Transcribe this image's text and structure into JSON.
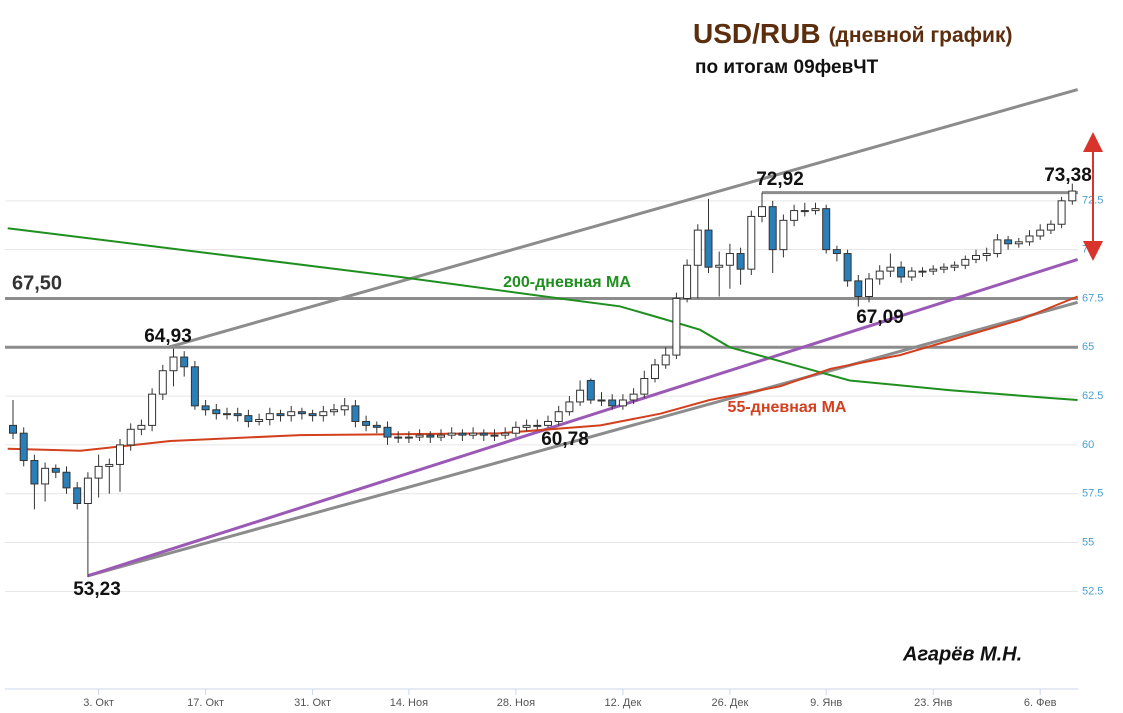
{
  "chart_data": {
    "type": "candlestick",
    "title": "USD/RUB",
    "title_note": "(дневной график)",
    "subtitle": "по итогам 09февЧТ",
    "author": "Агарёв М.Н.",
    "ylim": [
      47.5,
      75
    ],
    "yticks": [
      52.5,
      55,
      57.5,
      60,
      62.5,
      65,
      67.5,
      70,
      72.5
    ],
    "xticks": [
      {
        "value": 8,
        "label": "3. Окт"
      },
      {
        "value": 18,
        "label": "17. Окт"
      },
      {
        "value": 28,
        "label": "31. Окт"
      },
      {
        "value": 37,
        "label": "14. Ноя"
      },
      {
        "value": 47,
        "label": "28. Ноя"
      },
      {
        "value": 57,
        "label": "12. Дек"
      },
      {
        "value": 67,
        "label": "26. Дек"
      },
      {
        "value": 76,
        "label": "9. Янв"
      },
      {
        "value": 86,
        "label": "23. Янв"
      },
      {
        "value": 96,
        "label": "6. Фев"
      }
    ],
    "grid": true,
    "up_color": "#ffffff",
    "down_color": "#2a7fb8",
    "ohlc": [
      [
        61.0,
        62.3,
        60.3,
        60.6
      ],
      [
        60.6,
        60.9,
        58.9,
        59.2
      ],
      [
        59.2,
        59.5,
        56.7,
        58.0
      ],
      [
        58.0,
        59.1,
        57.1,
        58.8
      ],
      [
        58.8,
        59.0,
        58.3,
        58.6
      ],
      [
        58.6,
        58.9,
        57.5,
        57.8
      ],
      [
        57.8,
        58.1,
        56.7,
        57.0
      ],
      [
        57.0,
        58.6,
        53.23,
        58.3
      ],
      [
        58.3,
        59.5,
        57.3,
        58.9
      ],
      [
        58.9,
        59.3,
        57.5,
        59.0
      ],
      [
        59.0,
        60.3,
        57.6,
        60.0
      ],
      [
        60.0,
        61.1,
        59.7,
        60.8
      ],
      [
        60.8,
        61.3,
        60.5,
        61.0
      ],
      [
        61.0,
        62.9,
        60.7,
        62.6
      ],
      [
        62.6,
        64.1,
        62.3,
        63.8
      ],
      [
        63.8,
        64.93,
        63.0,
        64.5
      ],
      [
        64.5,
        64.8,
        63.5,
        64.0
      ],
      [
        64.0,
        64.3,
        61.8,
        62.0
      ],
      [
        62.0,
        62.3,
        61.5,
        61.8
      ],
      [
        61.8,
        62.1,
        61.3,
        61.6
      ],
      [
        61.6,
        61.9,
        61.3,
        61.6
      ],
      [
        61.6,
        61.9,
        61.2,
        61.5
      ],
      [
        61.5,
        61.8,
        60.9,
        61.2
      ],
      [
        61.2,
        61.6,
        61.0,
        61.3
      ],
      [
        61.3,
        61.9,
        61.0,
        61.6
      ],
      [
        61.6,
        61.8,
        61.2,
        61.5
      ],
      [
        61.5,
        62.0,
        61.2,
        61.7
      ],
      [
        61.7,
        61.9,
        61.3,
        61.6
      ],
      [
        61.6,
        61.8,
        61.2,
        61.5
      ],
      [
        61.5,
        62.0,
        61.2,
        61.7
      ],
      [
        61.7,
        62.1,
        61.5,
        61.8
      ],
      [
        61.8,
        62.4,
        61.5,
        62.0
      ],
      [
        62.0,
        62.3,
        60.9,
        61.2
      ],
      [
        61.2,
        61.5,
        60.7,
        61.0
      ],
      [
        61.0,
        61.2,
        60.6,
        60.9
      ],
      [
        60.9,
        61.2,
        60.0,
        60.4
      ],
      [
        60.4,
        60.7,
        60.1,
        60.4
      ],
      [
        60.4,
        60.7,
        60.1,
        60.4
      ],
      [
        60.4,
        60.8,
        60.2,
        60.5
      ],
      [
        60.5,
        60.7,
        60.1,
        60.4
      ],
      [
        60.4,
        60.8,
        60.2,
        60.5
      ],
      [
        60.5,
        60.9,
        60.3,
        60.6
      ],
      [
        60.6,
        60.8,
        60.2,
        60.5
      ],
      [
        60.5,
        60.9,
        60.3,
        60.6
      ],
      [
        60.6,
        60.8,
        60.2,
        60.5
      ],
      [
        60.5,
        60.8,
        60.2,
        60.5
      ],
      [
        60.5,
        60.9,
        60.3,
        60.6
      ],
      [
        60.6,
        61.2,
        60.4,
        60.9
      ],
      [
        60.9,
        61.3,
        60.7,
        61.0
      ],
      [
        61.0,
        61.3,
        60.78,
        61.0
      ],
      [
        61.0,
        61.5,
        60.9,
        61.2
      ],
      [
        61.2,
        62.0,
        61.0,
        61.7
      ],
      [
        61.7,
        62.5,
        61.5,
        62.2
      ],
      [
        62.2,
        63.3,
        62.0,
        62.8
      ],
      [
        63.3,
        63.4,
        62.1,
        62.3
      ],
      [
        62.3,
        62.7,
        62.0,
        62.3
      ],
      [
        62.3,
        62.6,
        61.8,
        62.0
      ],
      [
        62.0,
        62.6,
        61.8,
        62.3
      ],
      [
        62.3,
        62.9,
        62.1,
        62.6
      ],
      [
        62.6,
        63.8,
        62.4,
        63.4
      ],
      [
        63.4,
        64.4,
        63.2,
        64.1
      ],
      [
        64.1,
        65.0,
        63.9,
        64.6
      ],
      [
        64.6,
        67.8,
        64.4,
        67.5
      ],
      [
        67.5,
        69.5,
        67.3,
        69.2
      ],
      [
        69.2,
        71.3,
        67.5,
        71.0
      ],
      [
        71.0,
        72.6,
        68.8,
        69.1
      ],
      [
        69.1,
        69.9,
        67.6,
        69.2
      ],
      [
        69.2,
        70.3,
        68.0,
        69.8
      ],
      [
        69.8,
        70.1,
        68.2,
        69.0
      ],
      [
        69.0,
        72.0,
        68.7,
        71.7
      ],
      [
        71.7,
        72.92,
        71.4,
        72.2
      ],
      [
        72.2,
        72.5,
        68.8,
        70.0
      ],
      [
        70.0,
        71.8,
        69.6,
        71.5
      ],
      [
        71.5,
        72.3,
        71.2,
        72.0
      ],
      [
        72.0,
        72.4,
        71.7,
        72.0
      ],
      [
        72.0,
        72.4,
        71.8,
        72.1
      ],
      [
        72.1,
        72.3,
        69.8,
        70.0
      ],
      [
        70.0,
        70.2,
        69.4,
        69.8
      ],
      [
        69.8,
        70.0,
        68.1,
        68.4
      ],
      [
        68.4,
        68.7,
        67.09,
        67.6
      ],
      [
        67.6,
        68.8,
        67.3,
        68.5
      ],
      [
        68.5,
        69.2,
        68.2,
        68.9
      ],
      [
        68.9,
        69.8,
        68.6,
        69.1
      ],
      [
        69.1,
        69.4,
        68.3,
        68.6
      ],
      [
        68.6,
        69.1,
        68.4,
        68.9
      ],
      [
        68.9,
        69.1,
        68.6,
        68.9
      ],
      [
        68.9,
        69.2,
        68.7,
        69.0
      ],
      [
        69.0,
        69.3,
        68.8,
        69.1
      ],
      [
        69.1,
        69.4,
        68.9,
        69.2
      ],
      [
        69.2,
        69.7,
        69.0,
        69.5
      ],
      [
        69.5,
        70.0,
        69.3,
        69.7
      ],
      [
        69.7,
        70.1,
        69.4,
        69.8
      ],
      [
        69.8,
        70.8,
        69.6,
        70.5
      ],
      [
        70.5,
        70.7,
        70.0,
        70.3
      ],
      [
        70.3,
        70.6,
        70.1,
        70.4
      ],
      [
        70.4,
        71.0,
        70.2,
        70.7
      ],
      [
        70.7,
        71.3,
        70.5,
        71.0
      ],
      [
        71.0,
        71.5,
        70.8,
        71.3
      ],
      [
        71.3,
        72.7,
        71.1,
        72.5
      ],
      [
        72.5,
        73.38,
        72.3,
        73.0
      ]
    ],
    "series": [
      {
        "name": "200-дневная МА",
        "color": "#1f8f1f",
        "x": [
          -0.5,
          15.6,
          36.2,
          51.1,
          56.7,
          60.5,
          64.2,
          67,
          73.6,
          78.2,
          87.6,
          96.9,
          99.5
        ],
        "values": [
          71.1,
          70.0,
          68.6,
          67.5,
          67.1,
          66.5,
          65.9,
          65.0,
          64.0,
          63.3,
          62.8,
          62.4,
          62.3
        ]
      },
      {
        "name": "55-дневная МА",
        "color": "#d2401e",
        "x": [
          -0.5,
          6.3,
          14.7,
          26.8,
          45.5,
          54.9,
          60.5,
          65.1,
          71.7,
          76.4,
          82.9,
          88.5,
          94.1,
          99.5
        ],
        "values": [
          59.8,
          59.7,
          60.2,
          60.5,
          60.6,
          61.0,
          61.6,
          62.3,
          63.0,
          63.9,
          64.6,
          65.5,
          66.4,
          67.6
        ]
      }
    ],
    "levels": [
      {
        "value": 67.5,
        "label": "67,50"
      },
      {
        "value": 65
      },
      {
        "value": 72.92
      }
    ],
    "trendlines": [
      {
        "color": "#8c8c8c",
        "from": [
          14.5,
          65.0
        ],
        "to": [
          99.5,
          78.2
        ]
      },
      {
        "color": "#8c8c8c",
        "from": [
          7,
          53.3
        ],
        "to": [
          99.5,
          67.3
        ]
      },
      {
        "color": "#9b59b6",
        "from": [
          7,
          53.3
        ],
        "to": [
          99.5,
          69.5
        ]
      }
    ],
    "price_labels": [
      {
        "value": 53.23,
        "label": "53,23"
      },
      {
        "value": 64.93,
        "label": "64,93"
      },
      {
        "value": 60.78,
        "label": "60,78"
      },
      {
        "value": 72.92,
        "label": "72,92"
      },
      {
        "value": 67.09,
        "label": "67,09"
      },
      {
        "value": 73.38,
        "label": "73,38"
      }
    ]
  }
}
